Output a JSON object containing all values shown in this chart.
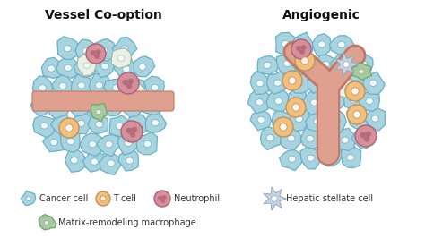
{
  "title_left": "Vessel Co-option",
  "title_right": "Angiogenic",
  "bg_color": "#ffffff",
  "cancer_cell_fill": "#a8d4e0",
  "cancer_cell_edge": "#6ab0c8",
  "t_cell_fill": "#f0c080",
  "t_cell_edge": "#c89050",
  "neutrophil_fill": "#d4909c",
  "neutrophil_edge": "#b06070",
  "hepatic_fill": "#c8d4e0",
  "hepatic_edge": "#90a8c0",
  "macrophage_fill": "#a8c8a0",
  "macrophage_edge": "#78a870",
  "vessel_fill": "#e0a090",
  "vessel_edge": "#c07868",
  "white_cell_fill": "#e8f0e8",
  "white_cell_edge": "#a0b8a0",
  "legend_labels": [
    "Cancer cell",
    "T cell",
    "Neutrophil",
    "Hepatic stellate cell",
    "Matrix-remodeling macrophage"
  ],
  "title_fontsize": 10,
  "legend_fontsize": 7
}
